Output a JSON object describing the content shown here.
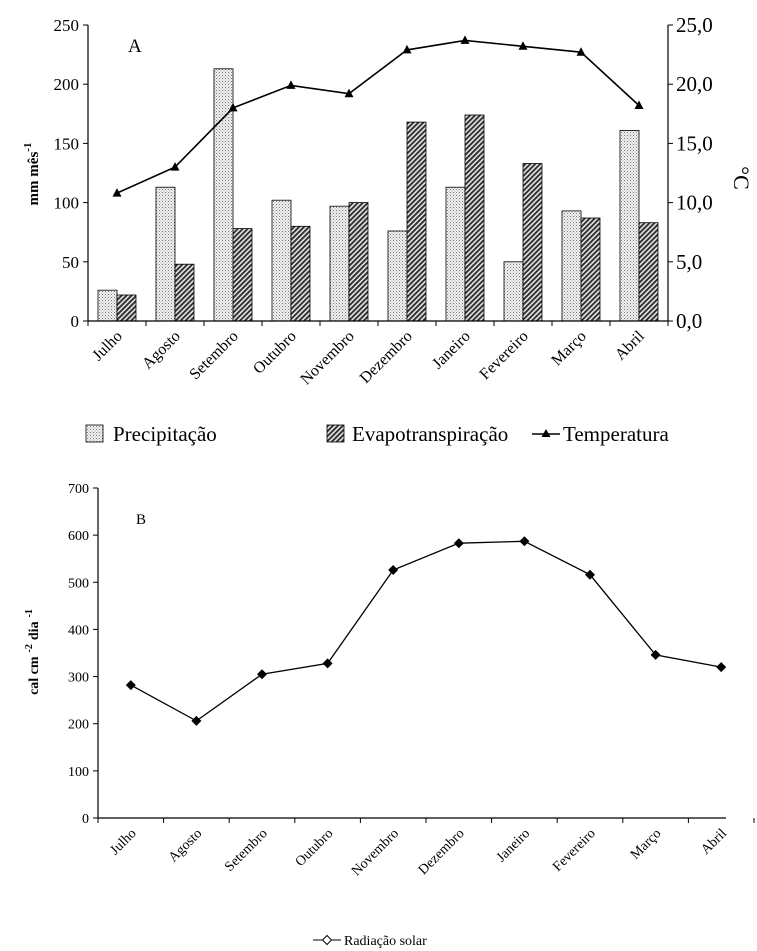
{
  "chart_data": [
    {
      "type": "bar",
      "panel_label": "A",
      "categories": [
        "Julho",
        "Agosto",
        "Setembro",
        "Outubro",
        "Novembro",
        "Dezembro",
        "Janeiro",
        "Fevereiro",
        "Março",
        "Abril"
      ],
      "ylabel": "mm mês",
      "ylabel_superscript": "-1",
      "y2label": "°C",
      "ylim": [
        0,
        250
      ],
      "yticks": [
        "0",
        "50",
        "100",
        "150",
        "200",
        "250"
      ],
      "y2lim": [
        0,
        25
      ],
      "y2ticks": [
        "0,0",
        "5,0",
        "10,0",
        "15,0",
        "20,0",
        "25,0"
      ],
      "series": [
        {
          "name": "Precipitação",
          "kind": "bar",
          "axis": "left",
          "pattern": "dotted",
          "values": [
            26,
            113,
            213,
            102,
            97,
            76,
            113,
            50,
            93,
            161
          ]
        },
        {
          "name": "Evapotranspiração",
          "kind": "bar",
          "axis": "left",
          "pattern": "diagonal-hatch",
          "values": [
            22,
            48,
            78,
            80,
            100,
            168,
            174,
            133,
            87,
            83
          ]
        },
        {
          "name": "Temperatura",
          "kind": "line",
          "axis": "right",
          "marker": "triangle",
          "values": [
            10.8,
            13.0,
            18.0,
            19.9,
            19.2,
            22.9,
            23.7,
            23.2,
            22.7,
            18.2
          ]
        }
      ],
      "legend": [
        "Precipitação",
        "Evapotranspiração",
        "Temperatura"
      ],
      "legend_position": "bottom",
      "grid": false
    },
    {
      "type": "line",
      "panel_label": "B",
      "categories": [
        "Julho",
        "Agosto",
        "Setembro",
        "Outubro",
        "Novembro",
        "Dezembro",
        "Janeiro",
        "Fevereiro",
        "Março",
        "Abril"
      ],
      "ylabel": "cal cm",
      "ylabel_sup1": "-2",
      "ylabel_mid": "dia",
      "ylabel_sup2": "-1",
      "ylim": [
        0,
        700
      ],
      "yticks": [
        "0",
        "100",
        "200",
        "300",
        "400",
        "500",
        "600",
        "700"
      ],
      "series": [
        {
          "name": "Radiação solar",
          "marker": "diamond",
          "values": [
            282,
            206,
            305,
            328,
            526,
            583,
            587,
            516,
            346,
            320
          ]
        }
      ],
      "legend": [
        "Radiação solar"
      ],
      "legend_position": "bottom",
      "grid": false
    }
  ]
}
